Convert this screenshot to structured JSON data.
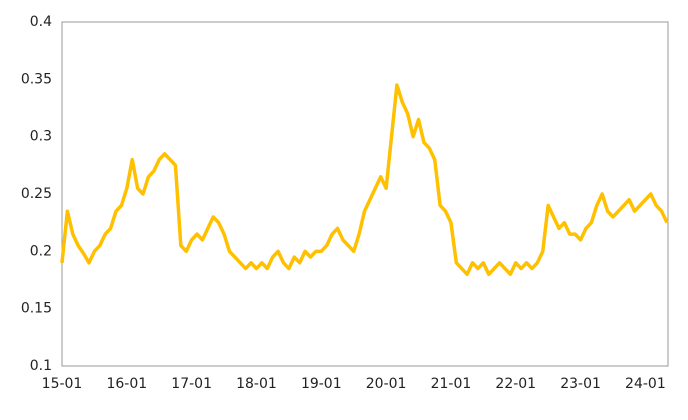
{
  "chart_data": {
    "type": "line",
    "categories": [
      "15-01",
      null,
      null,
      null,
      null,
      null,
      null,
      null,
      null,
      null,
      null,
      null,
      "16-01",
      null,
      null,
      null,
      null,
      null,
      null,
      null,
      null,
      null,
      null,
      null,
      "17-01",
      null,
      null,
      null,
      null,
      null,
      null,
      null,
      null,
      null,
      null,
      null,
      "18-01",
      null,
      null,
      null,
      null,
      null,
      null,
      null,
      null,
      null,
      null,
      null,
      "19-01",
      null,
      null,
      null,
      null,
      null,
      null,
      null,
      null,
      null,
      null,
      null,
      "20-01",
      null,
      null,
      null,
      null,
      null,
      null,
      null,
      null,
      null,
      null,
      null,
      "21-01",
      null,
      null,
      null,
      null,
      null,
      null,
      null,
      null,
      null,
      null,
      null,
      "22-01",
      null,
      null,
      null,
      null,
      null,
      null,
      null,
      null,
      null,
      null,
      null,
      "23-01",
      null,
      null,
      null,
      null,
      null,
      null,
      null,
      null,
      null,
      null,
      null,
      "24-01",
      null,
      null,
      null,
      null
    ],
    "series": [
      {
        "color": "#FFC000",
        "values": [
          0.19,
          0.235,
          0.215,
          0.205,
          0.198,
          0.19,
          0.2,
          0.205,
          0.215,
          0.22,
          0.235,
          0.24,
          0.255,
          0.28,
          0.255,
          0.25,
          0.265,
          0.27,
          0.28,
          0.285,
          0.28,
          0.275,
          0.205,
          0.2,
          0.21,
          0.215,
          0.21,
          0.22,
          0.23,
          0.225,
          0.215,
          0.2,
          0.195,
          0.19,
          0.185,
          0.19,
          0.185,
          0.19,
          0.185,
          0.195,
          0.2,
          0.19,
          0.185,
          0.195,
          0.19,
          0.2,
          0.195,
          0.2,
          0.2,
          0.205,
          0.215,
          0.22,
          0.21,
          0.205,
          0.2,
          0.215,
          0.235,
          0.245,
          0.255,
          0.265,
          0.255,
          0.3,
          0.345,
          0.33,
          0.32,
          0.3,
          0.315,
          0.295,
          0.29,
          0.28,
          0.24,
          0.235,
          0.225,
          0.19,
          0.185,
          0.18,
          0.19,
          0.185,
          0.19,
          0.18,
          0.185,
          0.19,
          0.185,
          0.18,
          0.19,
          0.185,
          0.19,
          0.185,
          0.19,
          0.2,
          0.24,
          0.23,
          0.22,
          0.225,
          0.215,
          0.215,
          0.21,
          0.22,
          0.225,
          0.24,
          0.25,
          0.235,
          0.23,
          0.235,
          0.24,
          0.245,
          0.235,
          0.24,
          0.245,
          0.25,
          0.24,
          0.235,
          0.225
        ]
      }
    ],
    "ylim": [
      0.1,
      0.4
    ],
    "yticks": [
      0.1,
      0.15,
      0.2,
      0.25,
      0.3,
      0.35,
      0.4
    ],
    "grid": false
  }
}
